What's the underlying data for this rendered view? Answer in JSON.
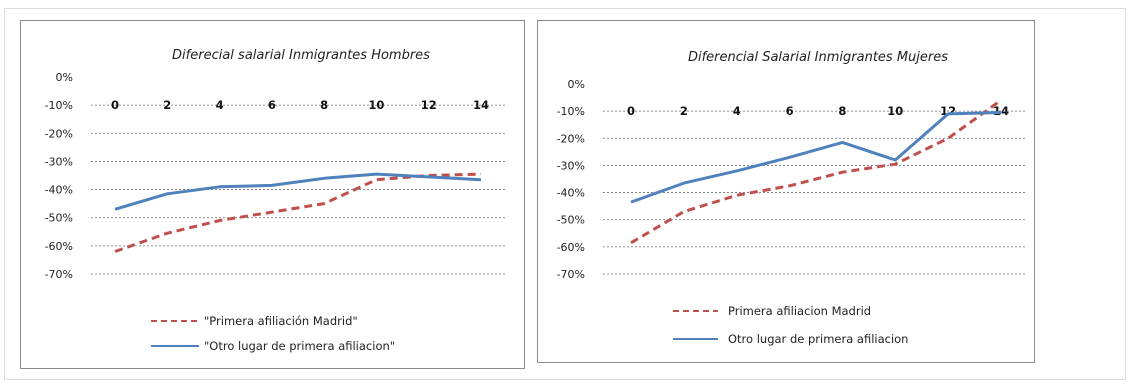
{
  "chart_data": [
    {
      "type": "line",
      "title": "Diferecial salarial Inmigrantes  Hombres",
      "x": [
        0,
        2,
        4,
        6,
        8,
        10,
        12,
        14
      ],
      "y_ticks": [
        "0%",
        "-10%",
        "-20%",
        "-30%",
        "-40%",
        "-50%",
        "-60%",
        "-70%"
      ],
      "ylim": [
        -70,
        0
      ],
      "grid": true,
      "legend_position": "bottom",
      "series": [
        {
          "name": "\"Primera afiliación Madrid\"",
          "style": "dashed",
          "color": "#c0504d",
          "x": [
            0,
            2,
            4,
            6,
            8,
            10,
            12,
            14
          ],
          "values": [
            -62,
            -55.5,
            -51,
            -48,
            -45,
            -36.5,
            -35,
            -34.5
          ]
        },
        {
          "name": "\"Otro lugar de primera afiliacion\"",
          "style": "solid",
          "color": "#4f81bd",
          "x": [
            0,
            2,
            4,
            6,
            8,
            10,
            12,
            14
          ],
          "values": [
            -47,
            -41.5,
            -39,
            -38.5,
            -36,
            -34.5,
            -35.5,
            -36.5
          ]
        }
      ]
    },
    {
      "type": "line",
      "title": "Diferencial Salarial Inmigrantes  Mujeres",
      "x": [
        0,
        2,
        4,
        6,
        8,
        10,
        12,
        14
      ],
      "y_ticks": [
        "0%",
        "-10%",
        "-20%",
        "-30%",
        "-40%",
        "-50%",
        "-60%",
        "-70%"
      ],
      "ylim": [
        -70,
        0
      ],
      "grid": true,
      "legend_position": "bottom",
      "series": [
        {
          "name": "Primera afiliacion Madrid",
          "style": "dashed",
          "color": "#c0504d",
          "x": [
            0,
            2,
            4,
            6,
            8,
            10,
            12,
            14
          ],
          "values": [
            -58.5,
            -47,
            -41,
            -37.5,
            -32.5,
            -29.5,
            -20,
            -6
          ]
        },
        {
          "name": "Otro lugar de primera afiliacion",
          "style": "solid",
          "color": "#4f81bd",
          "x": [
            0,
            2,
            4,
            6,
            8,
            10,
            12,
            14
          ],
          "values": [
            -43.5,
            -36.5,
            -32,
            -27,
            -21.5,
            -28,
            -11,
            -10.5
          ]
        }
      ]
    }
  ]
}
